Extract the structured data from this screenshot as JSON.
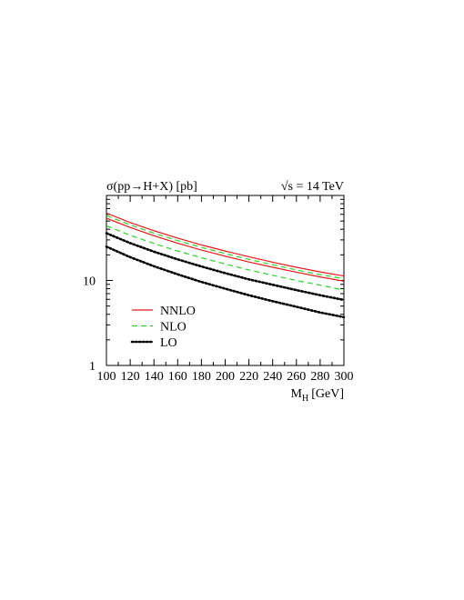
{
  "chart_data": {
    "type": "line",
    "title_left": "σ(pp→H+X) [pb]",
    "title_right": "√s = 14 TeV",
    "xlabel": "M",
    "xlabel_sub": "H",
    "xlabel_unit": "[GeV]",
    "ylabel": "",
    "xlim": [
      100,
      300
    ],
    "ylim": [
      1,
      100
    ],
    "yscale": "log",
    "x_ticks": [
      "100",
      "120",
      "140",
      "160",
      "180",
      "200",
      "220",
      "240",
      "260",
      "280",
      "300"
    ],
    "y_ticks": [
      "1",
      "10"
    ],
    "legend_position": "bottom-left",
    "x": [
      100,
      120,
      140,
      160,
      180,
      200,
      220,
      240,
      260,
      280,
      300
    ],
    "series": [
      {
        "name": "NNLO",
        "legend": true,
        "color": "#e41a1c",
        "style": "solid",
        "values": [
          62,
          48,
          38.5,
          31.5,
          26.2,
          22.2,
          19.0,
          16.4,
          14.3,
          12.6,
          11.3
        ]
      },
      {
        "name": "",
        "legend": false,
        "color": "#e41a1c",
        "style": "solid",
        "values": [
          54,
          42,
          33.6,
          27.4,
          22.8,
          19.3,
          16.5,
          14.3,
          12.5,
          11.0,
          9.8
        ]
      },
      {
        "name": "NLO",
        "legend": true,
        "color": "#2bd42b",
        "style": "dashed",
        "values": [
          58,
          45,
          36.0,
          29.4,
          24.5,
          20.7,
          17.7,
          15.3,
          13.3,
          11.7,
          10.5
        ]
      },
      {
        "name": "",
        "legend": false,
        "color": "#2bd42b",
        "style": "dashed",
        "values": [
          44,
          34,
          27.2,
          22.2,
          18.5,
          15.6,
          13.3,
          11.5,
          10.0,
          8.8,
          7.7
        ]
      },
      {
        "name": "LO",
        "legend": true,
        "color": "#000000",
        "style": "dotted",
        "values": [
          36,
          27.5,
          21.8,
          17.7,
          14.6,
          12.2,
          10.3,
          8.9,
          7.7,
          6.7,
          5.9
        ]
      },
      {
        "name": "",
        "legend": false,
        "color": "#000000",
        "style": "dotted",
        "values": [
          25,
          18.8,
          14.7,
          11.8,
          9.6,
          8.0,
          6.7,
          5.7,
          4.9,
          4.2,
          3.7
        ]
      }
    ]
  }
}
